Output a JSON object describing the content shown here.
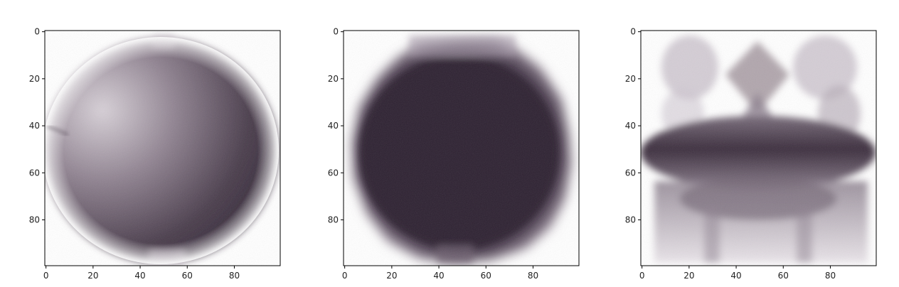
{
  "chart_data": [
    {
      "type": "heatmap",
      "image_description": "Grayscale projection image (imshow) of a round object with shading, darker on the right side",
      "x": {
        "range": [
          0,
          99
        ],
        "ticks": [
          0,
          20,
          40,
          60,
          80
        ],
        "tick_labels": [
          "0",
          "20",
          "40",
          "60",
          "80"
        ]
      },
      "y": {
        "range": [
          0,
          99
        ],
        "ticks": [
          0,
          20,
          40,
          60,
          80
        ],
        "tick_labels": [
          "0",
          "20",
          "40",
          "60",
          "80"
        ],
        "inverted": true
      },
      "colors": {
        "dark": "#2e2230",
        "mid": "#857785",
        "light": "#d8d1d8"
      }
    },
    {
      "type": "heatmap",
      "image_description": "Grayscale projection image (imshow) of a dark, roughly circular object with fuzzy edges",
      "x": {
        "range": [
          0,
          99
        ],
        "ticks": [
          0,
          20,
          40,
          60,
          80
        ],
        "tick_labels": [
          "0",
          "20",
          "40",
          "60",
          "80"
        ]
      },
      "y": {
        "range": [
          0,
          99
        ],
        "ticks": [
          0,
          20,
          40,
          60,
          80
        ],
        "tick_labels": [
          "0",
          "20",
          "40",
          "60",
          "80"
        ],
        "inverted": true
      },
      "colors": {
        "dark": "#2a2030",
        "mid": "#5a4b5e",
        "light": "#cbbfcc"
      }
    },
    {
      "type": "heatmap",
      "image_description": "Grayscale projection image (imshow) of a complex structure with a dark horizontal band and lighter lobes above and below",
      "x": {
        "range": [
          0,
          99
        ],
        "ticks": [
          0,
          20,
          40,
          60,
          80
        ],
        "tick_labels": [
          "0",
          "20",
          "40",
          "60",
          "80"
        ]
      },
      "y": {
        "range": [
          0,
          99
        ],
        "ticks": [
          0,
          20,
          40,
          60,
          80
        ],
        "tick_labels": [
          "0",
          "20",
          "40",
          "60",
          "80"
        ],
        "inverted": true
      },
      "colors": {
        "dark": "#3a2c3c",
        "mid": "#8b7f8d",
        "light": "#ddd6de"
      }
    }
  ]
}
